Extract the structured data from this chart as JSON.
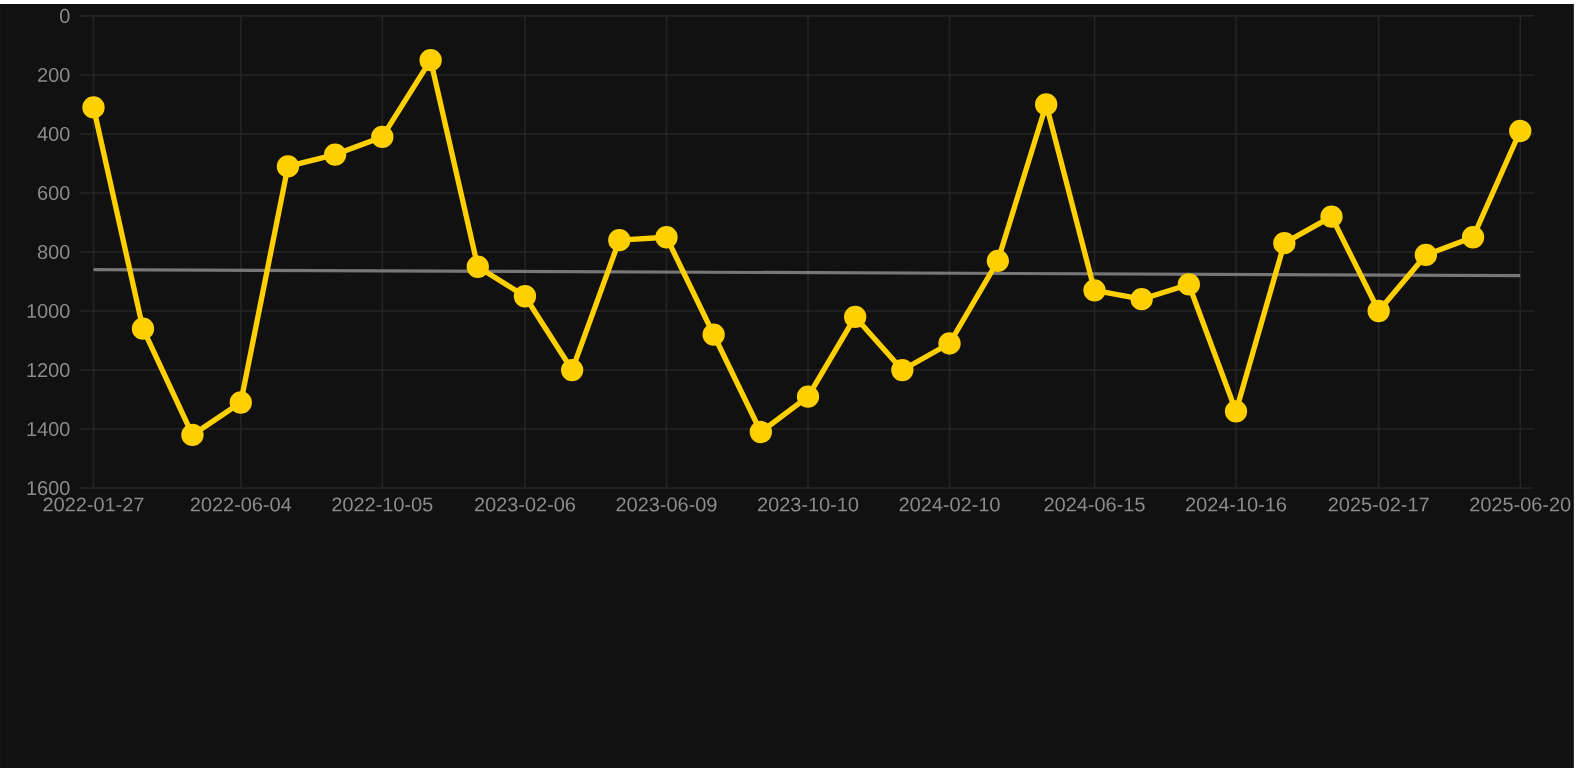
{
  "chart_data": {
    "type": "line",
    "x": [
      "2022-01-27",
      "2022-03-11",
      "2022-04-23",
      "2022-06-04",
      "2022-07-15",
      "2022-08-25",
      "2022-10-05",
      "2022-11-16",
      "2022-12-27",
      "2023-02-06",
      "2023-03-19",
      "2023-04-29",
      "2023-06-09",
      "2023-07-20",
      "2023-08-30",
      "2023-10-10",
      "2023-11-20",
      "2023-12-31",
      "2024-02-10",
      "2024-03-23",
      "2024-05-04",
      "2024-06-15",
      "2024-07-26",
      "2024-09-05",
      "2024-10-16",
      "2024-11-27",
      "2025-01-07",
      "2025-02-17",
      "2025-03-30",
      "2025-05-10",
      "2025-06-20"
    ],
    "series": [
      {
        "color": "#ffd000",
        "marker": "circle",
        "values": [
          310,
          1060,
          1420,
          1310,
          510,
          470,
          410,
          150,
          850,
          950,
          1200,
          760,
          750,
          1080,
          1410,
          1290,
          1020,
          1200,
          1110,
          830,
          300,
          930,
          960,
          910,
          1340,
          770,
          680,
          1000,
          810,
          750,
          390
        ]
      },
      {
        "type": "line",
        "color": "#777777",
        "marker": "none",
        "x": [
          "2022-01-27",
          "2025-06-20"
        ],
        "values": [
          860,
          880
        ]
      }
    ],
    "xlim": [
      "2022-01-15",
      "2025-07-02"
    ],
    "xticks": [
      "2022-01-27",
      "2022-06-04",
      "2022-10-05",
      "2023-02-06",
      "2023-06-09",
      "2023-10-10",
      "2024-02-10",
      "2024-06-15",
      "2024-10-16",
      "2025-02-17",
      "2025-06-20"
    ],
    "ylim": [
      1600,
      0
    ],
    "yticks": [
      0,
      200,
      400,
      600,
      800,
      1000,
      1200,
      1400,
      1600
    ],
    "grid": true
  }
}
